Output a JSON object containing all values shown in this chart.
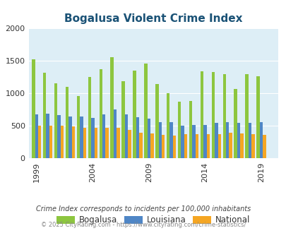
{
  "title": "Bogalusa Violent Crime Index",
  "years": [
    1999,
    2000,
    2001,
    2002,
    2003,
    2004,
    2005,
    2006,
    2007,
    2008,
    2009,
    2010,
    2011,
    2012,
    2013,
    2014,
    2015,
    2016,
    2017,
    2018,
    2019,
    2020
  ],
  "bogalusa": [
    1520,
    1310,
    1150,
    1100,
    960,
    1250,
    1370,
    1555,
    1185,
    1350,
    1455,
    1140,
    1000,
    870,
    885,
    1340,
    1330,
    1295,
    1060,
    1290,
    1260,
    null
  ],
  "louisiana": [
    680,
    685,
    665,
    645,
    640,
    620,
    680,
    750,
    670,
    635,
    615,
    555,
    555,
    505,
    510,
    515,
    545,
    560,
    545,
    545,
    560,
    null
  ],
  "national": [
    505,
    505,
    500,
    490,
    475,
    465,
    470,
    465,
    435,
    395,
    380,
    365,
    355,
    375,
    370,
    370,
    375,
    395,
    380,
    370,
    365,
    null
  ],
  "bogalusa_color": "#8dc63f",
  "louisiana_color": "#4f86c6",
  "national_color": "#f5a623",
  "bg_color": "#ddeef6",
  "ylim": [
    0,
    2000
  ],
  "yticks": [
    0,
    500,
    1000,
    1500,
    2000
  ],
  "xtick_labels": [
    "1999",
    "2004",
    "2009",
    "2014",
    "2019"
  ],
  "xtick_positions": [
    1999,
    2004,
    2009,
    2014,
    2019
  ],
  "legend_labels": [
    "Bogalusa",
    "Louisiana",
    "National"
  ],
  "legend_text_color": "#333333",
  "title_color": "#1a5276",
  "footnote1": "Crime Index corresponds to incidents per 100,000 inhabitants",
  "footnote1_color": "#444444",
  "footnote2": "© 2025 CityRating.com - https://www.cityrating.com/crime-statistics/",
  "footnote2_color": "#888888",
  "bar_width": 0.28
}
